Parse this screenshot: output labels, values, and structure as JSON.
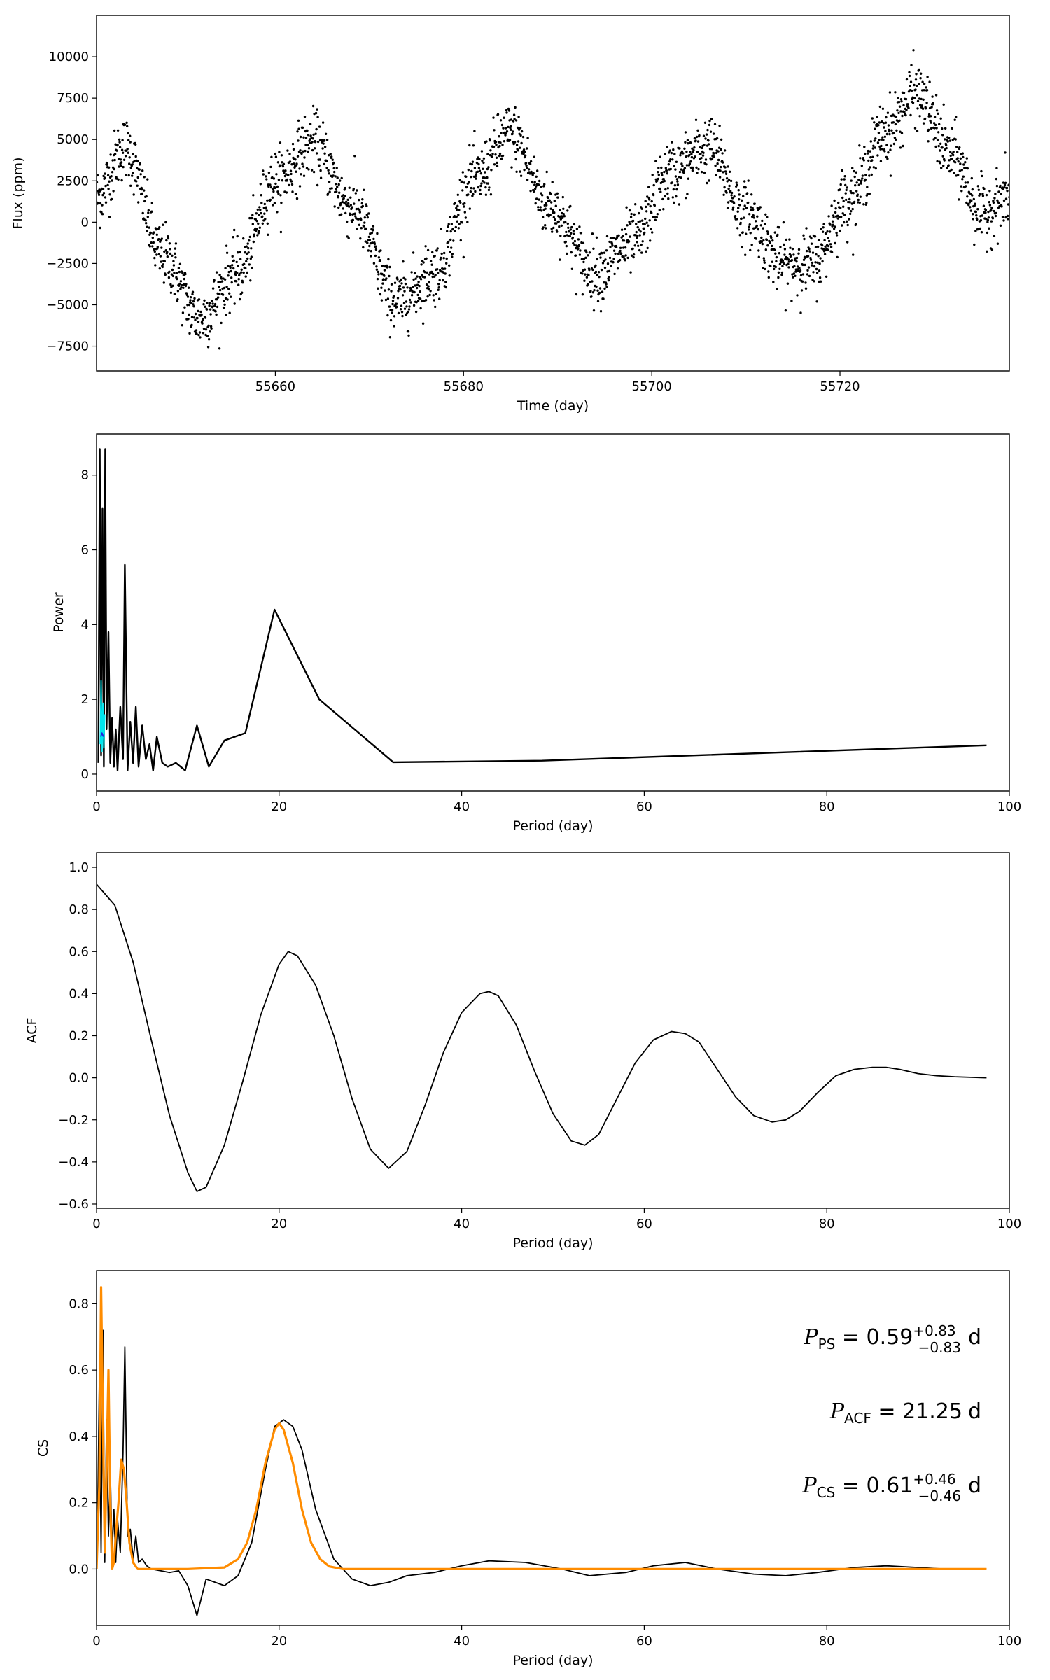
{
  "chart_data": [
    {
      "type": "scatter",
      "xlabel": "Time (day)",
      "ylabel": "Flux (ppm)",
      "xlim": [
        55641,
        55738
      ],
      "ylim": [
        -9000,
        12500
      ],
      "xticks": [
        55660,
        55680,
        55700,
        55720
      ],
      "yticks": [
        -7500,
        -5000,
        -2500,
        0,
        2500,
        5000,
        7500,
        10000
      ],
      "marker_color": "#000000",
      "description_of_signal": "quasi-periodic light curve, period ~21 d, amplitude ~5000 ppm, noise ~1000 ppm",
      "anchor_points": [
        {
          "x": 55641,
          "y": 1500
        },
        {
          "x": 55644,
          "y": 4500
        },
        {
          "x": 55648,
          "y": -2000
        },
        {
          "x": 55652,
          "y": -5800
        },
        {
          "x": 55656,
          "y": -3000
        },
        {
          "x": 55660,
          "y": 2500
        },
        {
          "x": 55664,
          "y": 4800
        },
        {
          "x": 55668,
          "y": 1000
        },
        {
          "x": 55673,
          "y": -4800
        },
        {
          "x": 55677,
          "y": -3000
        },
        {
          "x": 55681,
          "y": 2500
        },
        {
          "x": 55685,
          "y": 5300
        },
        {
          "x": 55689,
          "y": 1000
        },
        {
          "x": 55694,
          "y": -3000
        },
        {
          "x": 55698,
          "y": -1200
        },
        {
          "x": 55702,
          "y": 3000
        },
        {
          "x": 55706,
          "y": 4500
        },
        {
          "x": 55710,
          "y": 500
        },
        {
          "x": 55714,
          "y": -2500
        },
        {
          "x": 55717,
          "y": -2500
        },
        {
          "x": 55721,
          "y": 1500
        },
        {
          "x": 55725,
          "y": 5500
        },
        {
          "x": 55728,
          "y": 7800
        },
        {
          "x": 55732,
          "y": 4000
        },
        {
          "x": 55735,
          "y": 500
        },
        {
          "x": 55738,
          "y": 1500
        }
      ]
    },
    {
      "type": "line",
      "xlabel": "Period (day)",
      "ylabel": "Power",
      "xlim": [
        0,
        100
      ],
      "ylim": [
        -0.45,
        9.1
      ],
      "xticks": [
        0,
        20,
        40,
        60,
        80,
        100
      ],
      "yticks": [
        0,
        2,
        4,
        6,
        8
      ],
      "series": [
        {
          "color": "#000000",
          "x": [
            0.2,
            0.35,
            0.5,
            0.65,
            0.8,
            0.95,
            1.1,
            1.3,
            1.5,
            1.7,
            1.9,
            2.1,
            2.3,
            2.6,
            2.9,
            3.1,
            3.4,
            3.7,
            4.0,
            4.3,
            4.6,
            5.0,
            5.4,
            5.8,
            6.2,
            6.6,
            7.2,
            7.8,
            8.7,
            9.7,
            11.0,
            12.3,
            14.0,
            16.3,
            19.5,
            24.4,
            32.5,
            48.8,
            97.5
          ],
          "values": [
            0.3,
            8.7,
            0.5,
            7.1,
            0.2,
            8.7,
            1.2,
            3.8,
            0.3,
            1.5,
            0.2,
            1.2,
            0.1,
            1.8,
            0.4,
            5.6,
            0.1,
            1.4,
            0.3,
            1.8,
            0.2,
            1.3,
            0.4,
            0.8,
            0.1,
            1.0,
            0.3,
            0.2,
            0.3,
            0.1,
            1.3,
            0.2,
            0.9,
            1.1,
            4.4,
            2.0,
            0.32,
            0.36,
            0.77
          ]
        },
        {
          "color": "#00e5ee",
          "x": [
            0.4,
            0.5,
            0.6,
            0.7,
            0.8,
            0.9
          ],
          "values": [
            0.8,
            2.5,
            0.6,
            1.9,
            0.7,
            1.6
          ]
        },
        {
          "color": "#1f1fe0",
          "x": [
            0.45,
            0.6,
            0.75
          ],
          "values": [
            1.0,
            1.1,
            1.0
          ]
        }
      ]
    },
    {
      "type": "line",
      "xlabel": "Period (day)",
      "ylabel": "ACF",
      "xlim": [
        0,
        100
      ],
      "ylim": [
        -0.62,
        1.07
      ],
      "xticks": [
        0,
        20,
        40,
        60,
        80,
        100
      ],
      "yticks": [
        -0.6,
        -0.4,
        -0.2,
        0.0,
        0.2,
        0.4,
        0.6,
        0.8,
        1.0
      ],
      "series": [
        {
          "color": "#000000",
          "x": [
            0,
            2,
            4,
            6,
            8,
            10,
            11,
            12,
            14,
            16,
            18,
            20,
            21,
            22,
            24,
            26,
            28,
            30,
            32,
            34,
            36,
            38,
            40,
            42,
            43,
            44,
            46,
            48,
            50,
            52,
            53.5,
            55,
            57,
            59,
            61,
            63,
            64.5,
            66,
            68,
            70,
            72,
            74,
            75.5,
            77,
            79,
            81,
            83,
            85,
            86.5,
            88,
            90,
            92,
            94,
            97.5
          ],
          "values": [
            0.92,
            0.82,
            0.55,
            0.18,
            -0.18,
            -0.45,
            -0.54,
            -0.52,
            -0.32,
            -0.02,
            0.3,
            0.54,
            0.6,
            0.58,
            0.44,
            0.2,
            -0.1,
            -0.34,
            -0.43,
            -0.35,
            -0.13,
            0.12,
            0.31,
            0.4,
            0.41,
            0.39,
            0.25,
            0.03,
            -0.17,
            -0.3,
            -0.32,
            -0.27,
            -0.1,
            0.07,
            0.18,
            0.22,
            0.21,
            0.17,
            0.04,
            -0.09,
            -0.18,
            -0.21,
            -0.2,
            -0.16,
            -0.07,
            0.01,
            0.04,
            0.05,
            0.05,
            0.04,
            0.02,
            0.01,
            0.005,
            0.0
          ]
        }
      ]
    },
    {
      "type": "line",
      "xlabel": "Period (day)",
      "ylabel": "CS",
      "xlim": [
        0,
        100
      ],
      "ylim": [
        -0.17,
        0.9
      ],
      "xticks": [
        0,
        20,
        40,
        60,
        80,
        100
      ],
      "yticks": [
        0.0,
        0.2,
        0.4,
        0.6,
        0.8
      ],
      "series": [
        {
          "color": "#000000",
          "x": [
            0.1,
            0.3,
            0.5,
            0.7,
            0.9,
            1.1,
            1.3,
            1.5,
            1.7,
            1.9,
            2.1,
            2.3,
            2.6,
            2.9,
            3.1,
            3.4,
            3.7,
            4.0,
            4.3,
            4.6,
            5.0,
            5.5,
            6.0,
            7.0,
            8.0,
            9.0,
            10.0,
            11.0,
            12.0,
            13.0,
            14.0,
            15.5,
            17.0,
            18.5,
            19.5,
            20.5,
            21.5,
            22.5,
            24.0,
            26.0,
            28.0,
            30.0,
            32.0,
            34.0,
            37.0,
            40.0,
            43.0,
            47.0,
            51.0,
            54.0,
            58.0,
            61.0,
            64.5,
            68.0,
            72.0,
            75.5,
            79.0,
            83.0,
            86.5,
            90.0,
            93.0,
            97.5
          ],
          "values": [
            0.1,
            0.55,
            0.05,
            0.72,
            0.02,
            0.45,
            0.1,
            0.3,
            0.05,
            0.18,
            0.02,
            0.15,
            0.05,
            0.35,
            0.67,
            0.1,
            0.12,
            0.03,
            0.1,
            0.02,
            0.03,
            0.01,
            0.0,
            -0.005,
            -0.01,
            -0.005,
            -0.05,
            -0.14,
            -0.03,
            -0.04,
            -0.05,
            -0.02,
            0.08,
            0.3,
            0.43,
            0.45,
            0.43,
            0.36,
            0.18,
            0.03,
            -0.03,
            -0.05,
            -0.04,
            -0.02,
            -0.01,
            0.01,
            0.025,
            0.02,
            0.0,
            -0.02,
            -0.01,
            0.01,
            0.02,
            0.0,
            -0.015,
            -0.02,
            -0.01,
            0.005,
            0.01,
            0.005,
            0.0,
            0.0
          ]
        },
        {
          "color": "#ff8c00",
          "x": [
            0.0,
            0.3,
            0.5,
            0.7,
            0.9,
            1.1,
            1.3,
            1.5,
            1.7,
            1.9,
            2.1,
            2.4,
            2.7,
            3.0,
            3.3,
            3.6,
            4.0,
            4.5,
            5.0,
            6.0,
            10.0,
            14.0,
            15.5,
            16.5,
            17.5,
            18.5,
            19.5,
            20.0,
            20.5,
            21.5,
            22.5,
            23.5,
            24.5,
            25.5,
            27.0,
            30.0,
            50.0,
            97.5
          ],
          "values": [
            0.0,
            0.25,
            0.85,
            0.45,
            0.05,
            0.3,
            0.6,
            0.2,
            0.0,
            0.02,
            0.1,
            0.2,
            0.33,
            0.3,
            0.2,
            0.08,
            0.02,
            0.0,
            0.0,
            0.0,
            0.0,
            0.005,
            0.03,
            0.08,
            0.18,
            0.32,
            0.42,
            0.44,
            0.42,
            0.32,
            0.18,
            0.08,
            0.03,
            0.008,
            0.0,
            0.0,
            0.0,
            0.0
          ]
        }
      ],
      "annotations": [
        {
          "symbol": "P",
          "subscript": "PS",
          "eq": " = 0.59",
          "sup": "+0.83",
          "sub": "−0.83",
          "unit": "d"
        },
        {
          "symbol": "P",
          "subscript": "ACF",
          "eq": " = 21.25",
          "sup": "",
          "sub": "",
          "unit": "d"
        },
        {
          "symbol": "P",
          "subscript": "CS",
          "eq": " = 0.61",
          "sup": "+0.46",
          "sub": "−0.46",
          "unit": "d"
        }
      ]
    }
  ]
}
